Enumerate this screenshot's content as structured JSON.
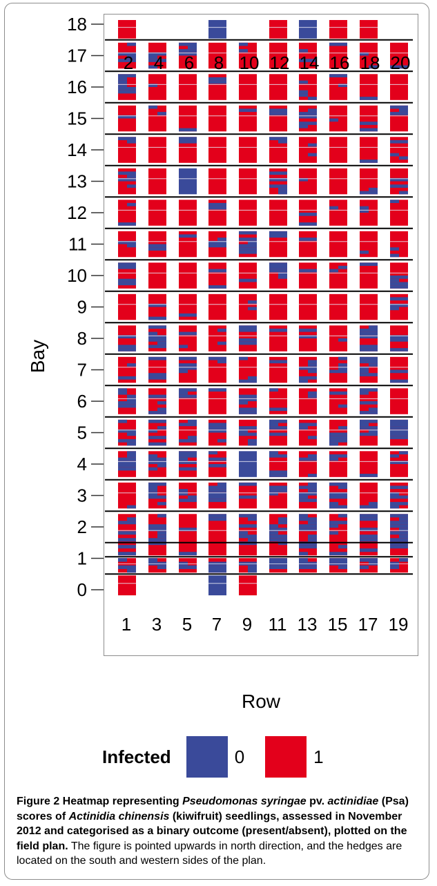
{
  "chart_data": {
    "type": "heatmap",
    "title": "",
    "xlabel": "Row",
    "ylabel": "Bay",
    "top_tick_labels": [
      "2",
      "4",
      "6",
      "8",
      "10",
      "12",
      "14",
      "16",
      "18",
      "20"
    ],
    "bottom_tick_labels": [
      "1",
      "3",
      "5",
      "7",
      "9",
      "11",
      "13",
      "15",
      "17",
      "19"
    ],
    "y_tick_labels": [
      "0",
      "1",
      "2",
      "3",
      "4",
      "5",
      "6",
      "7",
      "8",
      "9",
      "10",
      "11",
      "12",
      "13",
      "14",
      "15",
      "16",
      "17",
      "18"
    ],
    "ylim": [
      0,
      18
    ],
    "rows": [
      1,
      3,
      5,
      7,
      9,
      11,
      13,
      15,
      17,
      19
    ],
    "legend": {
      "title": "Infected",
      "entries": [
        {
          "label": "0",
          "color": "#3a4a9a"
        },
        {
          "label": "1",
          "color": "#e3001b"
        }
      ]
    },
    "bay_fraction_infected": {
      "columns_are_rows": [
        1,
        3,
        5,
        7,
        9,
        11,
        13,
        15,
        17,
        19
      ],
      "bay_18": [
        1.0,
        null,
        null,
        0.0,
        null,
        1.0,
        0.0,
        1.0,
        1.0,
        null
      ],
      "bay_17": [
        0.5,
        0.5,
        0.5,
        1.0,
        0.8,
        1.0,
        0.8,
        0.9,
        0.8,
        0.9
      ],
      "bay_16": [
        0.2,
        0.9,
        1.0,
        0.8,
        1.0,
        1.0,
        0.5,
        0.8,
        0.9,
        1.0
      ],
      "bay_15": [
        0.9,
        0.8,
        0.9,
        1.0,
        0.9,
        0.8,
        0.4,
        0.9,
        0.8,
        0.6
      ],
      "bay_14": [
        0.7,
        1.0,
        0.7,
        1.0,
        1.0,
        0.7,
        0.8,
        1.0,
        0.9,
        0.6
      ],
      "bay_13": [
        0.5,
        1.0,
        0.0,
        1.0,
        1.0,
        0.4,
        0.9,
        1.0,
        0.8,
        0.6
      ],
      "bay_12": [
        0.8,
        1.0,
        1.0,
        0.8,
        1.0,
        1.0,
        0.8,
        0.9,
        0.7,
        0.9
      ],
      "bay_11": [
        0.7,
        0.8,
        0.9,
        0.6,
        0.3,
        0.7,
        0.9,
        1.0,
        0.9,
        0.7
      ],
      "bay_10": [
        0.5,
        1.0,
        1.0,
        0.8,
        0.9,
        0.4,
        0.9,
        0.7,
        0.9,
        0.5
      ],
      "bay_9": [
        1.0,
        0.8,
        0.9,
        1.0,
        0.7,
        1.0,
        1.0,
        1.0,
        1.0,
        0.6
      ],
      "bay_8": [
        0.6,
        0.3,
        0.8,
        0.8,
        0.5,
        0.9,
        0.8,
        0.9,
        0.2,
        0.6
      ],
      "bay_7": [
        0.8,
        0.6,
        0.5,
        0.8,
        0.6,
        0.9,
        0.3,
        0.5,
        0.3,
        0.8
      ],
      "bay_6": [
        0.3,
        0.5,
        0.6,
        0.9,
        0.4,
        0.8,
        0.8,
        0.8,
        0.4,
        1.0
      ],
      "bay_5": [
        0.4,
        0.4,
        0.5,
        0.5,
        0.4,
        0.5,
        0.6,
        0.4,
        0.4,
        0.2
      ],
      "bay_4": [
        0.3,
        0.4,
        0.4,
        0.6,
        0.0,
        0.5,
        0.6,
        0.8,
        0.9,
        0.6
      ],
      "bay_3": [
        0.9,
        0.3,
        0.5,
        0.3,
        0.8,
        0.6,
        0.2,
        0.3,
        0.7,
        0.4
      ],
      "bay_2": [
        0.5,
        0.4,
        0.8,
        0.8,
        0.4,
        0.3,
        0.2,
        0.5,
        0.5,
        0.2
      ],
      "bay_1": [
        0.2,
        0.3,
        0.4,
        0.3,
        0.2,
        0.3,
        0.3,
        0.2,
        0.2,
        0.2
      ],
      "bay_0": [
        1.0,
        null,
        null,
        0.0,
        1.0,
        null,
        null,
        null,
        null,
        null
      ]
    }
  },
  "caption": {
    "bold_1": "Figure 2 Heatmap representing ",
    "bold_italic_1": "Pseudomonas syringae",
    "bold_2": " pv. ",
    "bold_italic_2": "actinidiae",
    "bold_3": " (Psa) scores of ",
    "bold_italic_3": "Actinidia chinensis",
    "bold_4": " (kiwifruit) seedlings, assessed in November 2012 and categorised as a binary outcome (present/absent), plotted on the field plan.",
    "normal": " The figure is pointed upwards in north direction, and the hedges are located on the south and western sides of the plan."
  }
}
